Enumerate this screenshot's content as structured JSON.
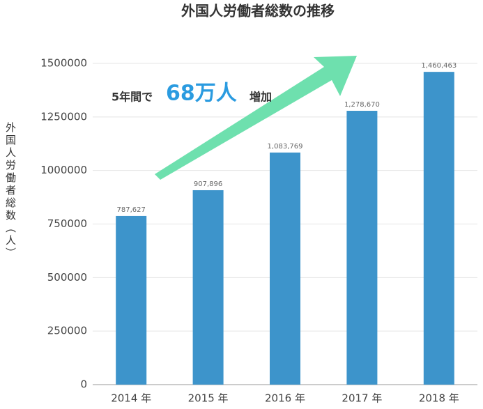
{
  "chart_data": {
    "type": "bar",
    "title": "外国人労働者総数の推移",
    "y_label": "外国人労働者総数（人）",
    "categories": [
      "2014 年",
      "2015 年",
      "2016 年",
      "2017 年",
      "2018 年"
    ],
    "values": [
      787627,
      907896,
      1083769,
      1278670,
      1460463
    ],
    "value_labels": [
      "787,627",
      "907,896",
      "1,083,769",
      "1,278,670",
      "1,460,463"
    ],
    "color": "#3d94cb",
    "ylim": [
      0,
      1500000
    ],
    "yticks": [
      0,
      250000,
      500000,
      750000,
      1000000,
      1250000,
      1500000
    ],
    "grid": true,
    "annotation": {
      "prefix": "5年間で",
      "highlight": "68万人",
      "suffix": "増加"
    }
  }
}
